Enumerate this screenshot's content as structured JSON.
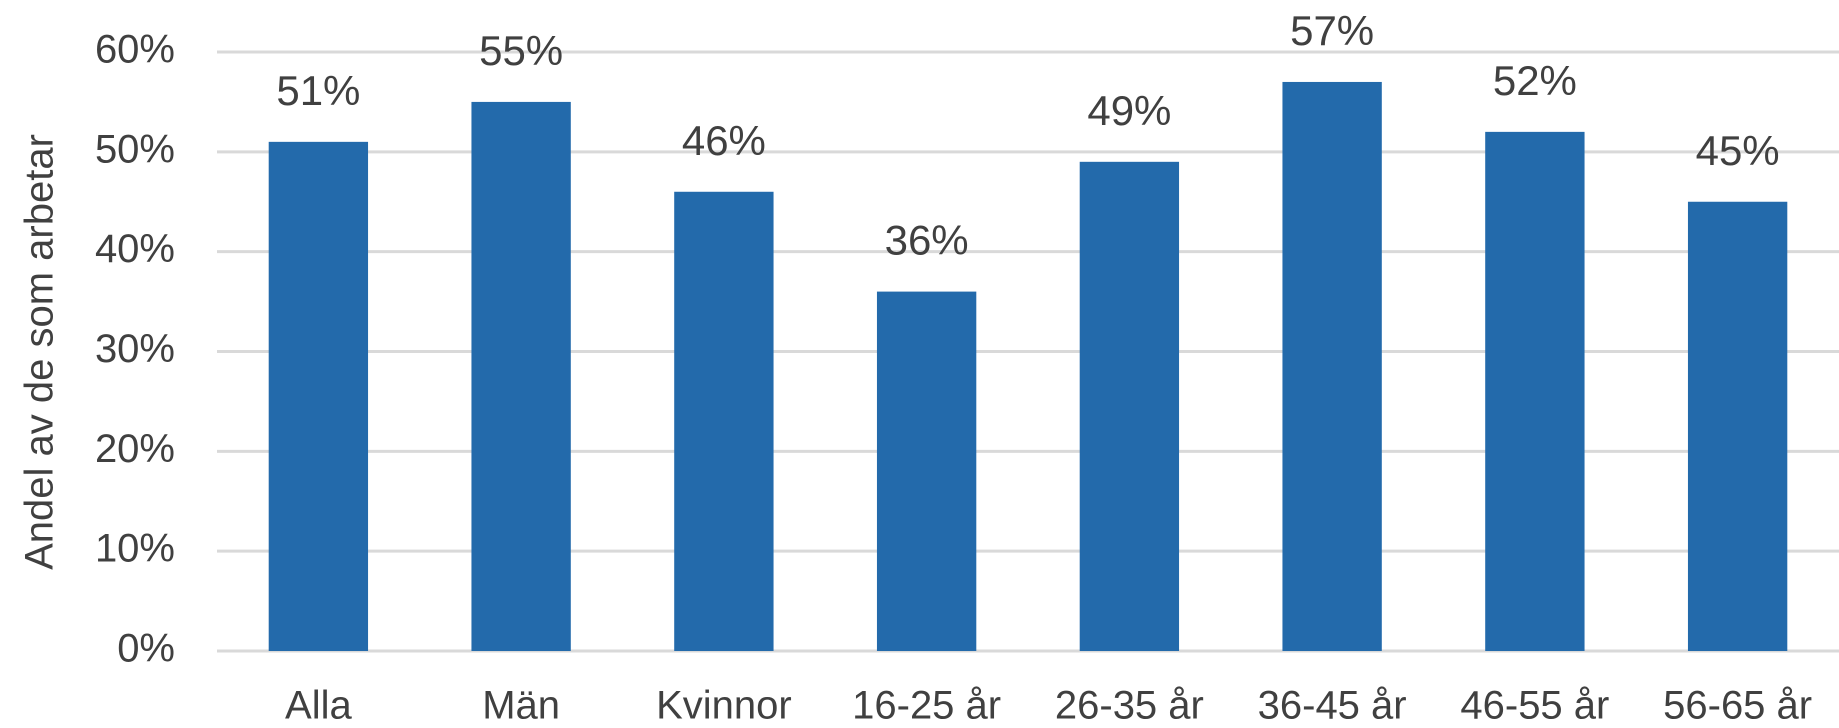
{
  "chart_data": {
    "type": "bar",
    "y_label": "Andel av de som arbetar",
    "categories": [
      "Alla",
      "Män",
      "Kvinnor",
      "16-25 år",
      "26-35 år",
      "36-45 år",
      "46-55 år",
      "56-65 år"
    ],
    "values": [
      51,
      55,
      46,
      36,
      49,
      57,
      52,
      45
    ],
    "value_labels": [
      "51%",
      "55%",
      "46%",
      "36%",
      "49%",
      "57%",
      "52%",
      "45%"
    ],
    "color": "#236aab",
    "ylim": [
      0,
      60
    ],
    "yticks": [
      {
        "value": 0,
        "label": "0%"
      },
      {
        "value": 10,
        "label": "10%"
      },
      {
        "value": 20,
        "label": "20%"
      },
      {
        "value": 30,
        "label": "30%"
      },
      {
        "value": 40,
        "label": "40%"
      },
      {
        "value": 50,
        "label": "50%"
      },
      {
        "value": 60,
        "label": "60%"
      }
    ],
    "grid": true
  }
}
